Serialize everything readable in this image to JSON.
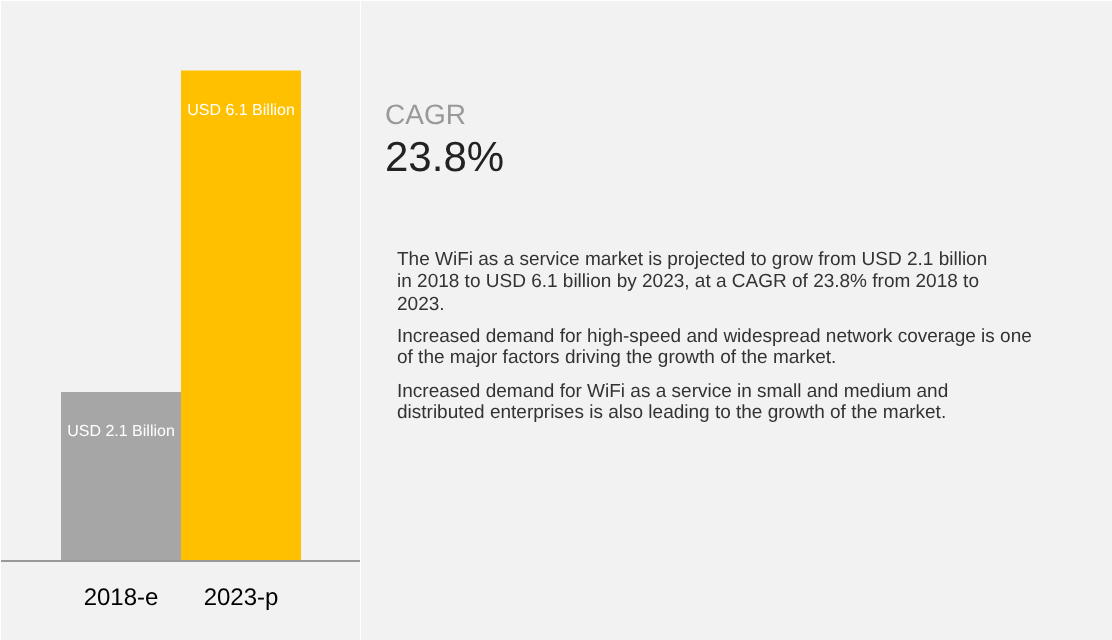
{
  "chart_data": [
    {
      "type": "bar",
      "categories": [
        "2018-e",
        "2023-p"
      ],
      "values": [
        2.1,
        6.1
      ],
      "colors": [
        "#a6a6a6",
        "#ffc000"
      ],
      "value_labels": [
        "USD 2.1 Billion",
        "USD 6.1 Billion"
      ],
      "tick_labels": "x",
      "grid": false
    },
    {
      "type": "other",
      "title": "CAGR",
      "annotations": [
        "23.8%",
        "The WiFi as a service market is projected to grow from USD 2.1 billion in 2018 to USD 6.1 billion by 2023, at a CAGR of 23.8% from 2018 to 2023.",
        "Increased demand for high-speed and widespread network coverage is one of the major factors driving the growth of the market.",
        "Increased demand for WiFi as a service in small and medium and distributed enterprises is also leading to the growth of the market."
      ]
    }
  ]
}
